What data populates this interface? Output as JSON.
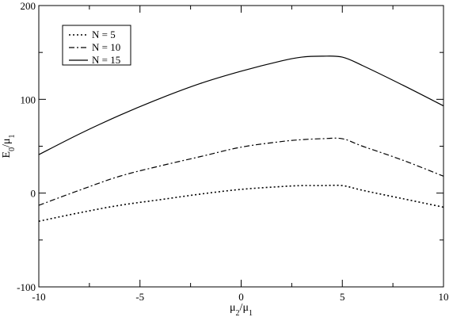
{
  "chart_data": {
    "type": "line",
    "title": "",
    "xlabel": "μ2/μ1",
    "ylabel": "E0/μ1",
    "xlim": [
      -10,
      10
    ],
    "ylim": [
      -100,
      200
    ],
    "xticks": [
      -10,
      -5,
      0,
      5,
      10
    ],
    "xtick_labels": [
      "-10",
      "-5",
      "0",
      "5",
      "10"
    ],
    "yticks": [
      -100,
      0,
      100,
      200
    ],
    "ytick_labels": [
      "-100",
      "0",
      "100",
      "200"
    ],
    "grid": false,
    "legend_position": "top-left",
    "series": [
      {
        "name": "N = 5",
        "line_style": "dotted",
        "x": [
          -10,
          -8,
          -6,
          -4,
          -2,
          0,
          2,
          3,
          4,
          5,
          6,
          8,
          10
        ],
        "y": [
          -30,
          -21,
          -13,
          -7,
          -1,
          4,
          7,
          8,
          8,
          8,
          3,
          -6,
          -15
        ]
      },
      {
        "name": "N = 10",
        "line_style": "dash-dot",
        "x": [
          -10,
          -8,
          -6,
          -4,
          -2,
          0,
          2,
          3,
          4,
          5,
          6,
          8,
          10
        ],
        "y": [
          -13,
          3,
          18,
          29,
          39,
          49,
          55,
          57,
          58,
          58,
          50,
          35,
          18
        ]
      },
      {
        "name": "N = 15",
        "line_style": "solid",
        "x": [
          -10,
          -8,
          -6,
          -4,
          -2,
          0,
          2,
          3,
          4,
          5,
          6,
          8,
          10
        ],
        "y": [
          41,
          63,
          83,
          101,
          117,
          130,
          141,
          145,
          146,
          145,
          136,
          115,
          93
        ]
      }
    ]
  }
}
